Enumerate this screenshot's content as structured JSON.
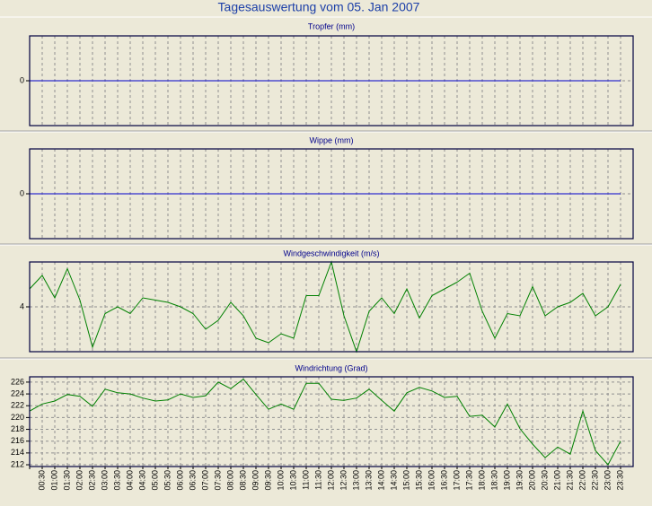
{
  "title": "Tagesauswertung vom 05. Jan 2007",
  "categories": [
    null,
    "00:30",
    "01:00",
    "01:30",
    "02:00",
    "02:30",
    "03:00",
    "03:30",
    "04:00",
    "04:30",
    "05:00",
    "05:30",
    "06:00",
    "06:30",
    "07:00",
    "07:30",
    "08:00",
    "08:30",
    "09:00",
    "09:30",
    "10:00",
    "10:30",
    "11:00",
    "11:30",
    "12:00",
    "12:30",
    "13:00",
    "13:30",
    "14:00",
    "14:30",
    "15:00",
    "15:30",
    "16:00",
    "16:30",
    "17:00",
    "17:30",
    "18:00",
    "18:30",
    "19:00",
    "19:30",
    "20:00",
    "20:30",
    "21:00",
    "21:30",
    "22:00",
    "22:30",
    "23:00",
    "23:30"
  ],
  "chart_data": [
    {
      "type": "line",
      "title": "Tropfer (mm)",
      "ylim": [
        -1,
        1
      ],
      "yticks": [
        0
      ],
      "grid": true,
      "series": [
        {
          "color": "#0000cc",
          "values": [
            0,
            0,
            0,
            0,
            0,
            0,
            0,
            0,
            0,
            0,
            0,
            0,
            0,
            0,
            0,
            0,
            0,
            0,
            0,
            0,
            0,
            0,
            0,
            0,
            0,
            0,
            0,
            0,
            0,
            0,
            0,
            0,
            0,
            0,
            0,
            0,
            0,
            0,
            0,
            0,
            0,
            0,
            0,
            0,
            0,
            0,
            0,
            0
          ]
        }
      ]
    },
    {
      "type": "line",
      "title": "Wippe (mm)",
      "ylim": [
        -1,
        1
      ],
      "yticks": [
        0
      ],
      "grid": true,
      "series": [
        {
          "color": "#0000cc",
          "values": [
            0,
            0,
            0,
            0,
            0,
            0,
            0,
            0,
            0,
            0,
            0,
            0,
            0,
            0,
            0,
            0,
            0,
            0,
            0,
            0,
            0,
            0,
            0,
            0,
            0,
            0,
            0,
            0,
            0,
            0,
            0,
            0,
            0,
            0,
            0,
            0,
            0,
            0,
            0,
            0,
            0,
            0,
            0,
            0,
            0,
            0,
            0,
            0
          ]
        }
      ]
    },
    {
      "type": "line",
      "title": "Windgeschwindigkeit (m/s)",
      "ylim": [
        2,
        6
      ],
      "yticks": [
        4
      ],
      "grid": true,
      "series": [
        {
          "color": "#008000",
          "values": [
            4.8,
            5.4,
            4.4,
            5.7,
            4.3,
            2.2,
            3.7,
            4.0,
            3.7,
            4.4,
            4.3,
            4.2,
            4.0,
            3.7,
            3.0,
            3.4,
            4.2,
            3.6,
            2.6,
            2.4,
            2.8,
            2.6,
            4.5,
            4.5,
            6.0,
            3.6,
            2.0,
            3.8,
            4.4,
            3.7,
            4.8,
            3.5,
            4.5,
            4.8,
            5.1,
            5.5,
            3.8,
            2.6,
            3.7,
            3.6,
            4.9,
            3.6,
            4.0,
            4.2,
            4.6,
            3.6,
            4.0,
            5.0
          ]
        }
      ]
    },
    {
      "type": "line",
      "title": "Windrichtung (Grad)",
      "ylim": [
        211.7,
        226.9
      ],
      "yticks": [
        212,
        214,
        216,
        218,
        220,
        222,
        224,
        226
      ],
      "grid": true,
      "series": [
        {
          "color": "#008000",
          "values": [
            221.1,
            222.3,
            222.8,
            223.9,
            223.6,
            221.9,
            224.8,
            224.2,
            224.0,
            223.3,
            222.8,
            223.0,
            224.0,
            223.4,
            223.7,
            226.0,
            224.9,
            226.5,
            223.9,
            221.4,
            222.3,
            221.4,
            225.8,
            225.8,
            223.1,
            222.9,
            223.3,
            224.8,
            222.9,
            221.1,
            224.2,
            225.1,
            224.5,
            223.4,
            223.6,
            220.2,
            220.4,
            218.4,
            222.3,
            218.1,
            215.5,
            213.2,
            215.0,
            213.8,
            221.1,
            214.4,
            212.0,
            216.0
          ]
        }
      ]
    }
  ]
}
